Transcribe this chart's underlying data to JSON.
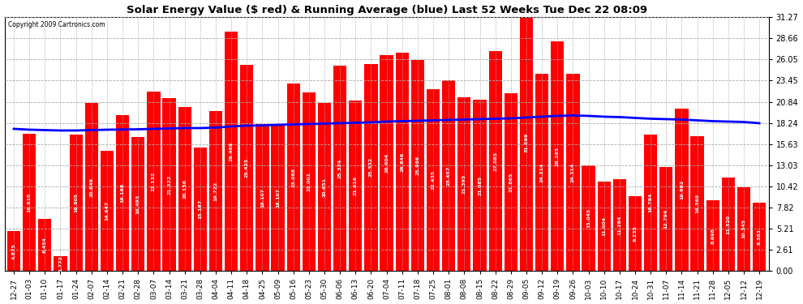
{
  "title": "Solar Energy Value ($ red) & Running Average (blue) Last 52 Weeks Tue Dec 22 08:09",
  "copyright": "Copyright 2009 Cartronics.com",
  "bar_color": "#ff0000",
  "line_color": "#0000ff",
  "background_color": "#ffffff",
  "plot_bg_color": "#ffffff",
  "grid_color": "#aaaaaa",
  "ylim": [
    0,
    31.27
  ],
  "yticks": [
    0.0,
    2.61,
    5.21,
    7.82,
    10.42,
    13.03,
    15.63,
    18.24,
    20.84,
    23.45,
    26.05,
    28.66,
    31.27
  ],
  "labels": [
    "12-27",
    "01-03",
    "01-10",
    "01-17",
    "01-24",
    "02-07",
    "02-14",
    "02-21",
    "02-28",
    "03-07",
    "03-14",
    "03-21",
    "03-28",
    "04-04",
    "04-11",
    "04-18",
    "04-25",
    "05-09",
    "05-16",
    "05-23",
    "05-30",
    "06-06",
    "06-13",
    "06-20",
    "07-04",
    "07-11",
    "07-18",
    "07-25",
    "08-01",
    "08-08",
    "08-15",
    "08-22",
    "08-29",
    "09-05",
    "09-12",
    "09-19",
    "09-26",
    "10-03",
    "10-10",
    "10-17",
    "10-24",
    "10-31",
    "11-07",
    "11-14",
    "11-21",
    "11-28",
    "12-05",
    "12-12",
    "12-19"
  ],
  "values": [
    4.875,
    16.91,
    6.454,
    1.772,
    16.805,
    20.646,
    14.847,
    19.168,
    16.493,
    22.132,
    21.322,
    20.156,
    15.187,
    19.722,
    29.469,
    25.425,
    18.107,
    18.107,
    23.088,
    22.001,
    20.651,
    25.324,
    21.016,
    25.532,
    26.604,
    26.846,
    25.986,
    22.435,
    23.457,
    21.395,
    21.085,
    27.085,
    21.865,
    31.599,
    24.314,
    28.285,
    24.314,
    13.045,
    11.004,
    11.284,
    9.235,
    16.794,
    12.794,
    19.992,
    16.568,
    8.698,
    11.52,
    10.345,
    8.383
  ],
  "running_avg": [
    17.5,
    17.4,
    17.35,
    17.3,
    17.3,
    17.35,
    17.4,
    17.42,
    17.45,
    17.5,
    17.55,
    17.6,
    17.6,
    17.65,
    17.8,
    17.9,
    17.92,
    18.0,
    18.05,
    18.1,
    18.15,
    18.2,
    18.25,
    18.3,
    18.4,
    18.45,
    18.5,
    18.55,
    18.6,
    18.65,
    18.7,
    18.75,
    18.8,
    18.9,
    19.0,
    19.1,
    19.15,
    19.1,
    19.0,
    18.95,
    18.85,
    18.75,
    18.7,
    18.65,
    18.55,
    18.45,
    18.4,
    18.35,
    18.2
  ]
}
